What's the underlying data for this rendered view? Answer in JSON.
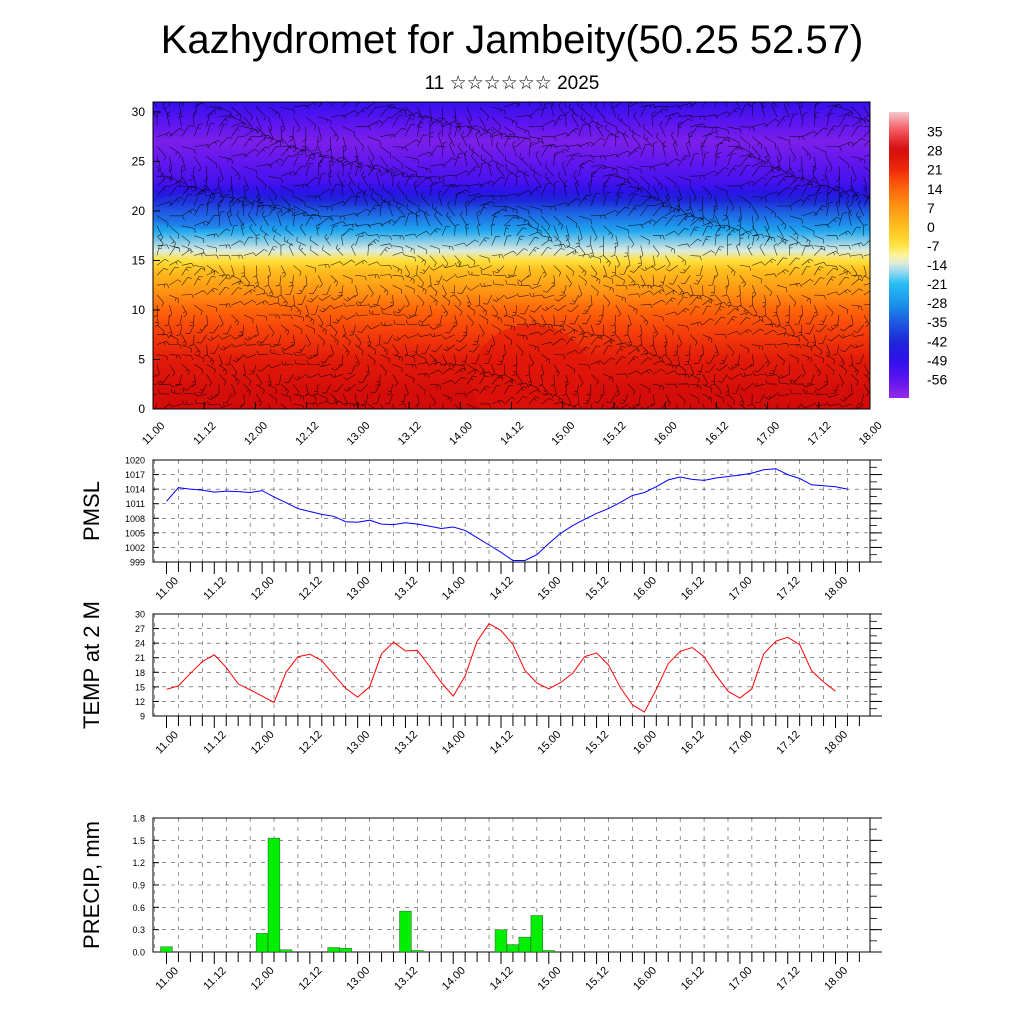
{
  "title": "Kazhydromet for Jambeity(50.25 52.57)",
  "subtitle": "11 ☆☆☆☆☆☆ 2025",
  "time_labels": [
    "11.00",
    "11.12",
    "12.00",
    "12.12",
    "13.00",
    "13.12",
    "14.00",
    "14.12",
    "15.00",
    "15.12",
    "16.00",
    "16.12",
    "17.00",
    "17.12",
    "18.00"
  ],
  "chart_data": [
    {
      "type": "heatmap",
      "title": "",
      "xlabel": "",
      "ylabel": "",
      "x": [
        "11.00",
        "11.12",
        "12.00",
        "12.12",
        "13.00",
        "13.12",
        "14.00",
        "14.12",
        "15.00",
        "15.12",
        "16.00",
        "16.12",
        "17.00",
        "17.12",
        "18.00"
      ],
      "ylim": [
        0,
        31
      ],
      "yticks": [
        0,
        5,
        10,
        15,
        20,
        25,
        30
      ],
      "colorbar_labels": [
        "35",
        "28",
        "21",
        "14",
        "7",
        "0",
        "-7",
        "-14",
        "-21",
        "-28",
        "-35",
        "-42",
        "-49",
        "-56"
      ],
      "colorbar_range": [
        -63,
        42
      ],
      "temperature_profile": {
        "levels": [
          0,
          2,
          5,
          8,
          10,
          12,
          14,
          15,
          16,
          18,
          20,
          21,
          22,
          23,
          25,
          27,
          29,
          31
        ],
        "values": [
          28,
          27,
          24,
          18,
          14,
          7,
          0,
          -7,
          -14,
          -25,
          -35,
          -42,
          -48,
          -53,
          -57,
          -60,
          -56,
          -50
        ]
      },
      "wind_barbs": true
    },
    {
      "type": "line",
      "ylabel": "PMSL",
      "ylim": [
        999,
        1020
      ],
      "yticks": [
        999,
        1002,
        1005,
        1008,
        1011,
        1014,
        1017,
        1020
      ],
      "series": [
        {
          "color": "#0000ff",
          "values": [
            1011.5,
            1014.3,
            1014.0,
            1013.8,
            1013.4,
            1013.6,
            1013.5,
            1013.3,
            1013.7,
            1012.4,
            1011.2,
            1010.0,
            1009.4,
            1008.8,
            1008.4,
            1007.3,
            1007.2,
            1007.6,
            1006.8,
            1006.7,
            1007.1,
            1006.8,
            1006.4,
            1005.9,
            1006.2,
            1005.5,
            1004.0,
            1002.5,
            1001.0,
            999.3,
            999.3,
            1000.5,
            1002.8,
            1004.9,
            1006.5,
            1007.8,
            1009.0,
            1010.0,
            1011.3,
            1012.7,
            1013.3,
            1014.5,
            1015.9,
            1016.5,
            1016.0,
            1015.8,
            1016.3,
            1016.6,
            1016.9,
            1017.3,
            1018.0,
            1018.2,
            1017.0,
            1016.2,
            1014.9,
            1014.7,
            1014.5,
            1014.0
          ]
        }
      ]
    },
    {
      "type": "line",
      "ylabel": "TEMP at 2 M",
      "ylim": [
        9,
        30
      ],
      "yticks": [
        9,
        12,
        15,
        18,
        21,
        24,
        27,
        30
      ],
      "series": [
        {
          "color": "#ff0000",
          "values": [
            14.5,
            15.2,
            17.8,
            20.2,
            21.6,
            19.0,
            15.6,
            14.4,
            13.1,
            11.8,
            18.0,
            21.2,
            21.7,
            20.4,
            17.5,
            14.7,
            12.9,
            15.0,
            21.8,
            24.2,
            22.4,
            22.5,
            19.3,
            15.9,
            13.1,
            17.3,
            24.4,
            28.0,
            26.6,
            23.7,
            18.4,
            15.8,
            14.6,
            15.9,
            17.8,
            21.2,
            22.0,
            19.5,
            14.8,
            11.3,
            9.8,
            14.5,
            19.8,
            22.3,
            23.1,
            21.2,
            17.4,
            14.1,
            12.7,
            14.6,
            21.8,
            24.4,
            25.2,
            23.7,
            18.3,
            16.0,
            14.1
          ]
        }
      ]
    },
    {
      "type": "bar",
      "ylabel": "PRECIP, mm",
      "ylim": [
        0,
        1.8
      ],
      "yticks": [
        "0.0",
        "0.3",
        "0.6",
        "0.9",
        "1.2",
        "1.5",
        "1.8"
      ],
      "series": [
        {
          "color": "#00ee00",
          "values": [
            0.07,
            0,
            0,
            0,
            0,
            0,
            0,
            0,
            0.25,
            1.53,
            0.03,
            0,
            0,
            0,
            0.06,
            0.05,
            0,
            0,
            0,
            0,
            0.55,
            0.02,
            0,
            0,
            0,
            0,
            0,
            0,
            0.3,
            0.1,
            0.2,
            0.49,
            0.02,
            0,
            0,
            0,
            0,
            0,
            0,
            0,
            0,
            0,
            0,
            0,
            0,
            0,
            0,
            0,
            0,
            0,
            0,
            0,
            0,
            0,
            0,
            0,
            0
          ]
        }
      ]
    }
  ]
}
